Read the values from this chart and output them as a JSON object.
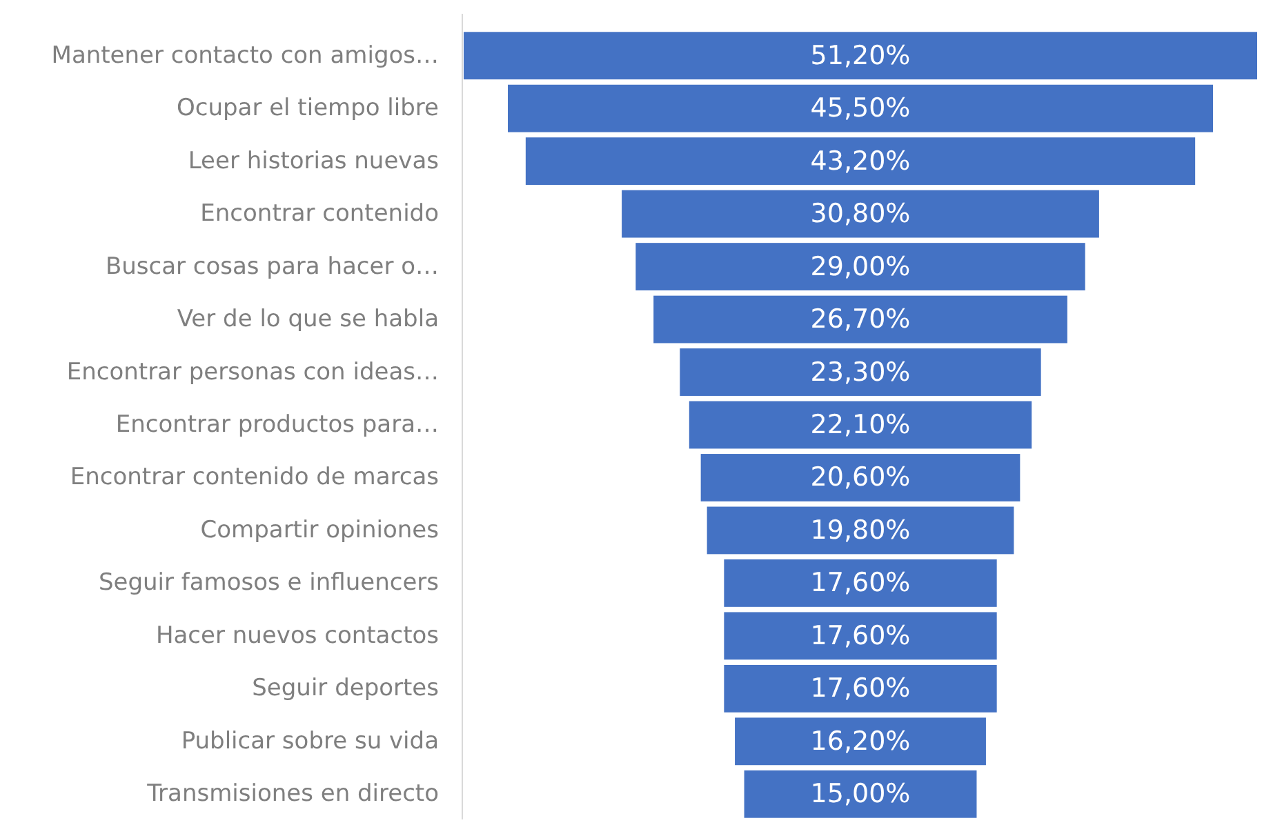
{
  "chart_data": {
    "type": "other",
    "categories": [
      "Mantener contacto con amigos…",
      "Ocupar el tiempo libre",
      "Leer historias nuevas",
      "Encontrar contenido",
      "Buscar cosas para hacer o…",
      "Ver de lo que se habla",
      "Encontrar personas con ideas…",
      "Encontrar productos para…",
      "Encontrar contenido de marcas",
      "Compartir opiniones",
      "Seguir famosos e influencers",
      "Hacer nuevos contactos",
      "Seguir deportes",
      "Publicar sobre su vida",
      "Transmisiones en directo"
    ],
    "values": [
      51.2,
      45.5,
      43.2,
      30.8,
      29.0,
      26.7,
      23.3,
      22.1,
      20.6,
      19.8,
      17.6,
      17.6,
      17.6,
      16.2,
      15.0
    ],
    "value_labels": [
      "51,20%",
      "45,50%",
      "43,20%",
      "30,80%",
      "29,00%",
      "26,70%",
      "23,30%",
      "22,10%",
      "20,60%",
      "19,80%",
      "17,60%",
      "17,60%",
      "17,60%",
      "16,20%",
      "15,00%"
    ],
    "color": "#4472c4"
  }
}
